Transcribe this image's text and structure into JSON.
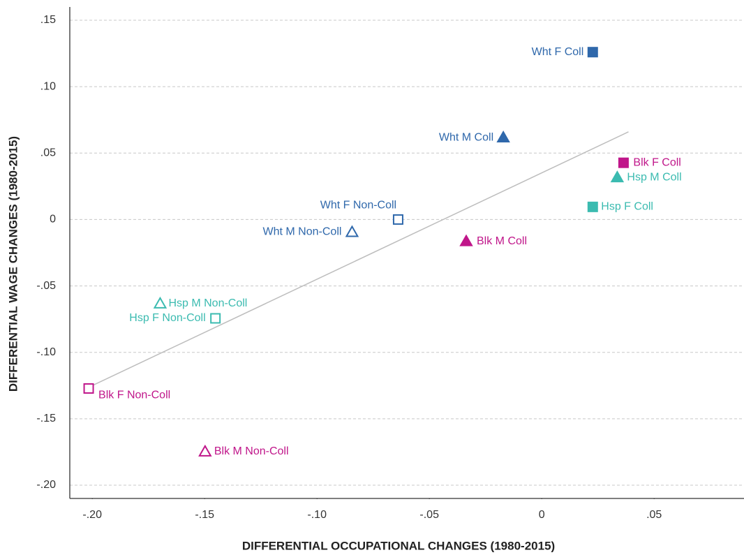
{
  "chart_data": {
    "type": "scatter",
    "xlabel": "DIFFERENTIAL OCCUPATIONAL CHANGES (1980-2015)",
    "ylabel": "DIFFERENTIAL WAGE CHANGES (1980-2015)",
    "xlim": [
      -0.21,
      0.09
    ],
    "ylim": [
      -0.21,
      0.16
    ],
    "xticks": [
      {
        "value": -0.2,
        "label": "-.20"
      },
      {
        "value": -0.15,
        "label": "-.15"
      },
      {
        "value": -0.1,
        "label": "-.10"
      },
      {
        "value": -0.05,
        "label": "-.05"
      },
      0,
      {
        "value": 0.05,
        "label": ".05"
      }
    ],
    "yticks": [
      {
        "value": -0.2,
        "label": "-.20"
      },
      {
        "value": -0.15,
        "label": "-.15"
      },
      {
        "value": -0.1,
        "label": "-.10"
      },
      {
        "value": -0.05,
        "label": "-.05"
      },
      0,
      {
        "value": 0.05,
        "label": ".05"
      },
      {
        "value": 0.1,
        "label": ".10"
      },
      {
        "value": 0.15,
        "label": ".15"
      }
    ],
    "grid": true,
    "series": [
      {
        "name": "Wht F Coll",
        "color": "#2f68ab",
        "marker": "square",
        "filled": true,
        "x": [
          0.0227
        ],
        "y": [
          0.126
        ]
      },
      {
        "name": "Wht M Coll",
        "color": "#2f68ab",
        "marker": "triangle",
        "filled": true,
        "x": [
          -0.0171
        ],
        "y": [
          0.0617
        ]
      },
      {
        "name": "Blk F Coll",
        "color": "#c0168a",
        "marker": "square",
        "filled": true,
        "x": [
          0.0364
        ],
        "y": [
          0.0427
        ]
      },
      {
        "name": "Hsp M Coll",
        "color": "#3bbbb0",
        "marker": "triangle",
        "filled": true,
        "x": [
          0.0336
        ],
        "y": [
          0.0317
        ]
      },
      {
        "name": "Hsp F Coll",
        "color": "#3bbbb0",
        "marker": "square",
        "filled": true,
        "x": [
          0.0227
        ],
        "y": [
          0.0095
        ]
      },
      {
        "name": "Wht F Non-Coll",
        "color": "#2f68ab",
        "marker": "square",
        "filled": false,
        "x": [
          -0.0639
        ],
        "y": [
          0
        ]
      },
      {
        "name": "Wht M Non-Coll",
        "color": "#2f68ab",
        "marker": "triangle",
        "filled": false,
        "x": [
          -0.0844
        ],
        "y": [
          -0.0095
        ]
      },
      {
        "name": "Blk M Coll",
        "color": "#c0168a",
        "marker": "triangle",
        "filled": true,
        "x": [
          -0.0336
        ],
        "y": [
          -0.0164
        ]
      },
      {
        "name": "Hsp M Non-Coll",
        "color": "#3bbbb0",
        "marker": "triangle",
        "filled": false,
        "x": [
          -0.1698
        ],
        "y": [
          -0.0633
        ]
      },
      {
        "name": "Hsp F Non-Coll",
        "color": "#3bbbb0",
        "marker": "square",
        "filled": false,
        "x": [
          -0.1452
        ],
        "y": [
          -0.0744
        ]
      },
      {
        "name": "Blk F Non-Coll",
        "color": "#c0168a",
        "marker": "square",
        "filled": false,
        "x": [
          -0.2016
        ],
        "y": [
          -0.1272
        ]
      },
      {
        "name": "Blk M Non-Coll",
        "color": "#c0168a",
        "marker": "triangle",
        "filled": false,
        "x": [
          -0.1498
        ],
        "y": [
          -0.1747
        ]
      }
    ],
    "trendline": {
      "color": "#bdbdbd",
      "x": [
        -0.2,
        0.0386
      ],
      "y": [
        -0.125,
        0.066
      ]
    }
  }
}
